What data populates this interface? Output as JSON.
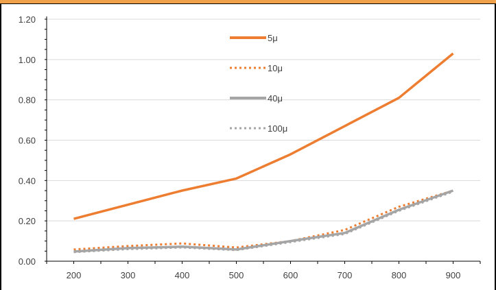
{
  "chart_data": {
    "type": "line",
    "title": "",
    "xlabel": "",
    "ylabel": "",
    "x": [
      200,
      300,
      400,
      500,
      600,
      700,
      800,
      900
    ],
    "xlim": [
      150,
      950
    ],
    "ylim": [
      0,
      1.2
    ],
    "y_ticks": [
      "0.00",
      "0.20",
      "0.40",
      "0.60",
      "0.80",
      "1.00",
      "1.20"
    ],
    "x_ticks": [
      "200",
      "300",
      "400",
      "500",
      "600",
      "700",
      "800",
      "900"
    ],
    "grid": "horizontal",
    "legend_position": "top-center",
    "series": [
      {
        "name": "5μ",
        "color": "#ed7d31",
        "style": "solid",
        "values": [
          0.21,
          0.28,
          0.35,
          0.41,
          0.53,
          0.67,
          0.81,
          1.03
        ]
      },
      {
        "name": "10μ",
        "color": "#ed7d31",
        "style": "dotted",
        "values": [
          0.058,
          0.075,
          0.088,
          0.068,
          0.1,
          0.155,
          0.27,
          0.35
        ]
      },
      {
        "name": "40μ",
        "color": "#a5a5a5",
        "style": "solid",
        "values": [
          0.048,
          0.065,
          0.072,
          0.058,
          0.1,
          0.14,
          0.255,
          0.35
        ]
      },
      {
        "name": "100μ",
        "color": "#a5a5a5",
        "style": "dotted",
        "values": [
          0.045,
          0.06,
          0.068,
          0.055,
          0.095,
          0.135,
          0.25,
          0.345
        ]
      }
    ]
  }
}
